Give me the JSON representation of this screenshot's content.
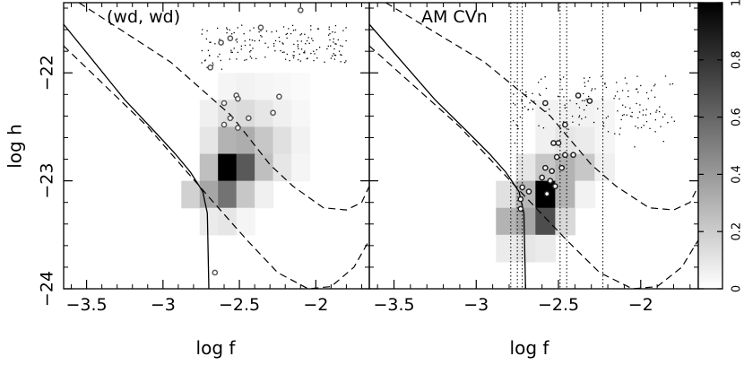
{
  "chart_data": {
    "type": "heatmap",
    "xlabel": "log f",
    "ylabel": "log h",
    "xlim": [
      -3.65,
      -1.65
    ],
    "ylim": [
      -24.0,
      -21.35
    ],
    "xticks": [
      -3.5,
      -3,
      -2.5,
      -2
    ],
    "xtick_labels": [
      "−3.5",
      "−3",
      "−2.5",
      "−2"
    ],
    "yticks": [
      -24,
      -23,
      -22
    ],
    "ytick_labels": [
      "−24",
      "−23",
      "−22"
    ],
    "colorbar": {
      "range": [
        0,
        1
      ],
      "ticks": [
        0,
        0.2,
        0.4,
        0.6,
        0.8,
        1
      ],
      "tick_labels": [
        "0",
        "0.2",
        "0.4",
        "0.6",
        "0.8",
        "1"
      ]
    },
    "panels": [
      {
        "title": "(wd, wd)",
        "cells_note": "each cell: [logf_left, logh_bottom, logf_width, logh_height, density]",
        "cells": [
          [
            -2.64,
            -22.25,
            0.12,
            0.25,
            0.04
          ],
          [
            -2.52,
            -22.25,
            0.12,
            0.25,
            0.05
          ],
          [
            -2.4,
            -22.25,
            0.12,
            0.25,
            0.04
          ],
          [
            -2.28,
            -22.25,
            0.12,
            0.25,
            0.03
          ],
          [
            -2.16,
            -22.25,
            0.12,
            0.25,
            0.02
          ],
          [
            -2.76,
            -22.5,
            0.12,
            0.25,
            0.06
          ],
          [
            -2.64,
            -22.5,
            0.12,
            0.25,
            0.12
          ],
          [
            -2.52,
            -22.5,
            0.12,
            0.25,
            0.14
          ],
          [
            -2.4,
            -22.5,
            0.12,
            0.25,
            0.1
          ],
          [
            -2.28,
            -22.5,
            0.12,
            0.25,
            0.06
          ],
          [
            -2.16,
            -22.5,
            0.12,
            0.25,
            0.03
          ],
          [
            -2.76,
            -22.75,
            0.12,
            0.25,
            0.1
          ],
          [
            -2.64,
            -22.75,
            0.12,
            0.25,
            0.3
          ],
          [
            -2.52,
            -22.75,
            0.12,
            0.25,
            0.32
          ],
          [
            -2.4,
            -22.75,
            0.12,
            0.25,
            0.22
          ],
          [
            -2.28,
            -22.75,
            0.12,
            0.25,
            0.12
          ],
          [
            -2.16,
            -22.75,
            0.12,
            0.25,
            0.05
          ],
          [
            -2.76,
            -23.0,
            0.12,
            0.25,
            0.25
          ],
          [
            -2.64,
            -23.0,
            0.12,
            0.25,
            1.0
          ],
          [
            -2.52,
            -23.0,
            0.12,
            0.25,
            0.65
          ],
          [
            -2.4,
            -23.0,
            0.12,
            0.25,
            0.25
          ],
          [
            -2.28,
            -23.0,
            0.12,
            0.25,
            0.1
          ],
          [
            -2.16,
            -23.0,
            0.12,
            0.25,
            0.04
          ],
          [
            -2.88,
            -23.25,
            0.12,
            0.25,
            0.18
          ],
          [
            -2.76,
            -23.25,
            0.12,
            0.25,
            0.35
          ],
          [
            -2.64,
            -23.25,
            0.12,
            0.25,
            0.55
          ],
          [
            -2.52,
            -23.25,
            0.12,
            0.25,
            0.22
          ],
          [
            -2.4,
            -23.25,
            0.12,
            0.25,
            0.06
          ],
          [
            -2.76,
            -23.5,
            0.12,
            0.25,
            0.08
          ],
          [
            -2.64,
            -23.5,
            0.12,
            0.25,
            0.1
          ],
          [
            -2.52,
            -23.5,
            0.12,
            0.25,
            0.04
          ]
        ],
        "observed": [
          [
            -2.69,
            -21.95
          ],
          [
            -2.62,
            -21.72
          ],
          [
            -2.56,
            -21.68
          ],
          [
            -2.36,
            -21.58
          ],
          [
            -2.1,
            -21.42
          ],
          [
            -2.6,
            -22.28
          ],
          [
            -2.52,
            -22.21
          ],
          [
            -2.51,
            -22.24
          ],
          [
            -2.56,
            -22.42
          ],
          [
            -2.51,
            -22.51
          ],
          [
            -2.44,
            -22.42
          ],
          [
            -2.28,
            -22.37
          ],
          [
            -2.24,
            -22.22
          ],
          [
            -2.6,
            -22.48
          ],
          [
            -2.66,
            -23.85
          ]
        ]
      },
      {
        "title": "AM CVn",
        "cells": [
          [
            -2.64,
            -22.5,
            0.12,
            0.25,
            0.05
          ],
          [
            -2.52,
            -22.5,
            0.12,
            0.25,
            0.05
          ],
          [
            -2.4,
            -22.5,
            0.12,
            0.25,
            0.05
          ],
          [
            -2.28,
            -22.5,
            0.12,
            0.25,
            0.04
          ],
          [
            -2.64,
            -22.75,
            0.12,
            0.25,
            0.06
          ],
          [
            -2.52,
            -22.75,
            0.12,
            0.25,
            0.1
          ],
          [
            -2.4,
            -22.75,
            0.12,
            0.25,
            0.08
          ],
          [
            -2.28,
            -22.75,
            0.12,
            0.25,
            0.04
          ],
          [
            -2.76,
            -23.0,
            0.12,
            0.25,
            0.1
          ],
          [
            -2.64,
            -23.0,
            0.12,
            0.25,
            0.22
          ],
          [
            -2.52,
            -23.0,
            0.12,
            0.25,
            0.3
          ],
          [
            -2.4,
            -23.0,
            0.12,
            0.25,
            0.22
          ],
          [
            -2.28,
            -23.0,
            0.12,
            0.25,
            0.06
          ],
          [
            -2.88,
            -23.25,
            0.12,
            0.25,
            0.12
          ],
          [
            -2.76,
            -23.25,
            0.12,
            0.25,
            0.28
          ],
          [
            -2.64,
            -23.25,
            0.12,
            0.25,
            1.0
          ],
          [
            -2.52,
            -23.25,
            0.12,
            0.25,
            0.3
          ],
          [
            -2.4,
            -23.25,
            0.12,
            0.25,
            0.05
          ],
          [
            -2.88,
            -23.5,
            0.12,
            0.25,
            0.3
          ],
          [
            -2.76,
            -23.5,
            0.12,
            0.25,
            0.35
          ],
          [
            -2.64,
            -23.5,
            0.12,
            0.25,
            0.7
          ],
          [
            -2.52,
            -23.5,
            0.12,
            0.25,
            0.15
          ],
          [
            -2.88,
            -23.75,
            0.12,
            0.25,
            0.08
          ],
          [
            -2.76,
            -23.75,
            0.12,
            0.25,
            0.1
          ],
          [
            -2.64,
            -23.75,
            0.12,
            0.25,
            0.08
          ]
        ],
        "observed": [
          [
            -2.58,
            -22.28
          ],
          [
            -2.38,
            -22.21
          ],
          [
            -2.31,
            -22.26
          ],
          [
            -2.46,
            -22.48
          ],
          [
            -2.53,
            -22.65
          ],
          [
            -2.5,
            -22.65
          ],
          [
            -2.51,
            -22.78
          ],
          [
            -2.46,
            -22.76
          ],
          [
            -2.41,
            -22.76
          ],
          [
            -2.58,
            -22.88
          ],
          [
            -2.54,
            -22.91
          ],
          [
            -2.48,
            -22.88
          ],
          [
            -2.6,
            -22.97
          ],
          [
            -2.55,
            -23.0
          ],
          [
            -2.52,
            -23.05
          ],
          [
            -2.57,
            -23.12
          ],
          [
            -2.72,
            -23.06
          ],
          [
            -2.68,
            -23.1
          ],
          [
            -2.73,
            -23.17
          ],
          [
            -2.73,
            -23.26
          ]
        ],
        "vlines": [
          -2.79,
          -2.75,
          -2.72,
          -2.49,
          -2.45,
          -2.23
        ]
      }
    ]
  }
}
